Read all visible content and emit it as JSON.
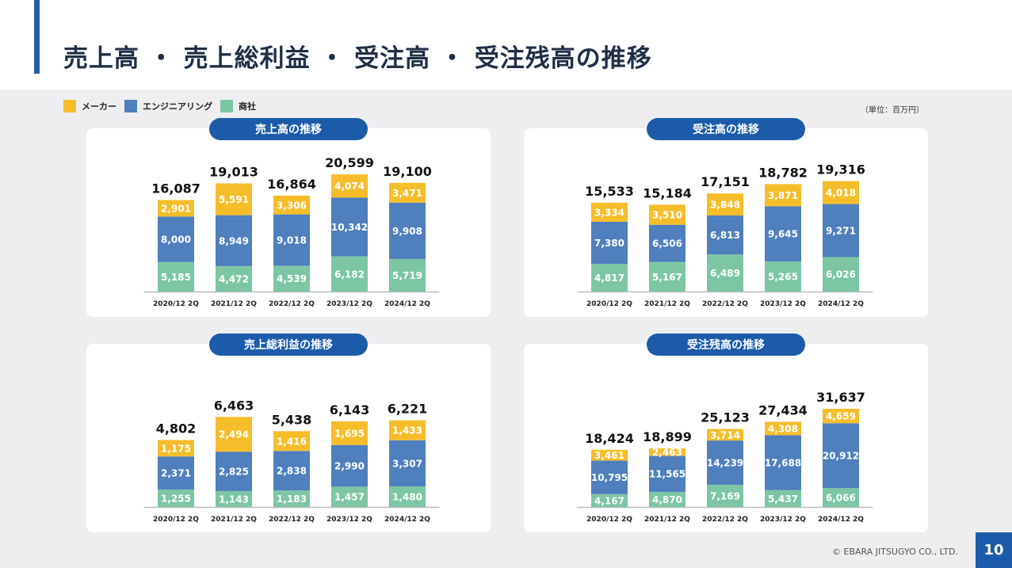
{
  "page": {
    "title": "売上高 ・ 売上総利益 ・ 受注高 ・ 受注残高の推移",
    "unit": "（単位：百万円）",
    "copyright": "© EBARA JITSUGYO CO., LTD.",
    "page_number": "10"
  },
  "legend": [
    {
      "label": "メーカー",
      "color": "#f6bd2b"
    },
    {
      "label": "エンジニアリング",
      "color": "#4f7fbd"
    },
    {
      "label": "商社",
      "color": "#7cc6a4"
    }
  ],
  "colors": {
    "maker": "#f6bd2b",
    "engineering": "#4f7fbd",
    "trading": "#7cc6a4",
    "accent": "#1c5ba9"
  },
  "chart_data": [
    {
      "type": "bar",
      "title": "売上高の推移",
      "categories": [
        "2020/12 2Q",
        "2021/12 2Q",
        "2022/12 2Q",
        "2023/12 2Q",
        "2024/12 2Q"
      ],
      "series": [
        {
          "name": "商社",
          "values": [
            5185,
            4472,
            4539,
            6182,
            5719
          ]
        },
        {
          "name": "エンジニアリング",
          "values": [
            8000,
            8949,
            9018,
            10342,
            9908
          ]
        },
        {
          "name": "メーカー",
          "values": [
            2901,
            5591,
            3306,
            4074,
            3471
          ]
        }
      ],
      "totals": [
        16087,
        19013,
        16864,
        20599,
        19100
      ]
    },
    {
      "type": "bar",
      "title": "受注高の推移",
      "categories": [
        "2020/12 2Q",
        "2021/12 2Q",
        "2022/12 2Q",
        "2023/12 2Q",
        "2024/12 2Q"
      ],
      "series": [
        {
          "name": "商社",
          "values": [
            4817,
            5167,
            6489,
            5265,
            6026
          ]
        },
        {
          "name": "エンジニアリング",
          "values": [
            7380,
            6506,
            6813,
            9645,
            9271
          ]
        },
        {
          "name": "メーカー",
          "values": [
            3334,
            3510,
            3848,
            3871,
            4018
          ]
        }
      ],
      "totals": [
        15533,
        15184,
        17151,
        18782,
        19316
      ]
    },
    {
      "type": "bar",
      "title": "売上総利益の推移",
      "categories": [
        "2020/12 2Q",
        "2021/12 2Q",
        "2022/12 2Q",
        "2023/12 2Q",
        "2024/12 2Q"
      ],
      "series": [
        {
          "name": "商社",
          "values": [
            1255,
            1143,
            1183,
            1457,
            1480
          ]
        },
        {
          "name": "エンジニアリング",
          "values": [
            2371,
            2825,
            2838,
            2990,
            3307
          ]
        },
        {
          "name": "メーカー",
          "values": [
            1175,
            2494,
            1416,
            1695,
            1433
          ]
        }
      ],
      "totals": [
        4802,
        6463,
        5438,
        6143,
        6221
      ]
    },
    {
      "type": "bar",
      "title": "受注残高の推移",
      "categories": [
        "2020/12 2Q",
        "2021/12 2Q",
        "2022/12 2Q",
        "2023/12 2Q",
        "2024/12 2Q"
      ],
      "series": [
        {
          "name": "商社",
          "values": [
            4167,
            4870,
            7169,
            5437,
            6066
          ]
        },
        {
          "name": "エンジニアリング",
          "values": [
            10795,
            11565,
            14239,
            17688,
            20912
          ]
        },
        {
          "name": "メーカー",
          "values": [
            3461,
            2463,
            3714,
            4308,
            4659
          ]
        }
      ],
      "totals": [
        18424,
        18899,
        25123,
        27434,
        31637
      ]
    }
  ]
}
